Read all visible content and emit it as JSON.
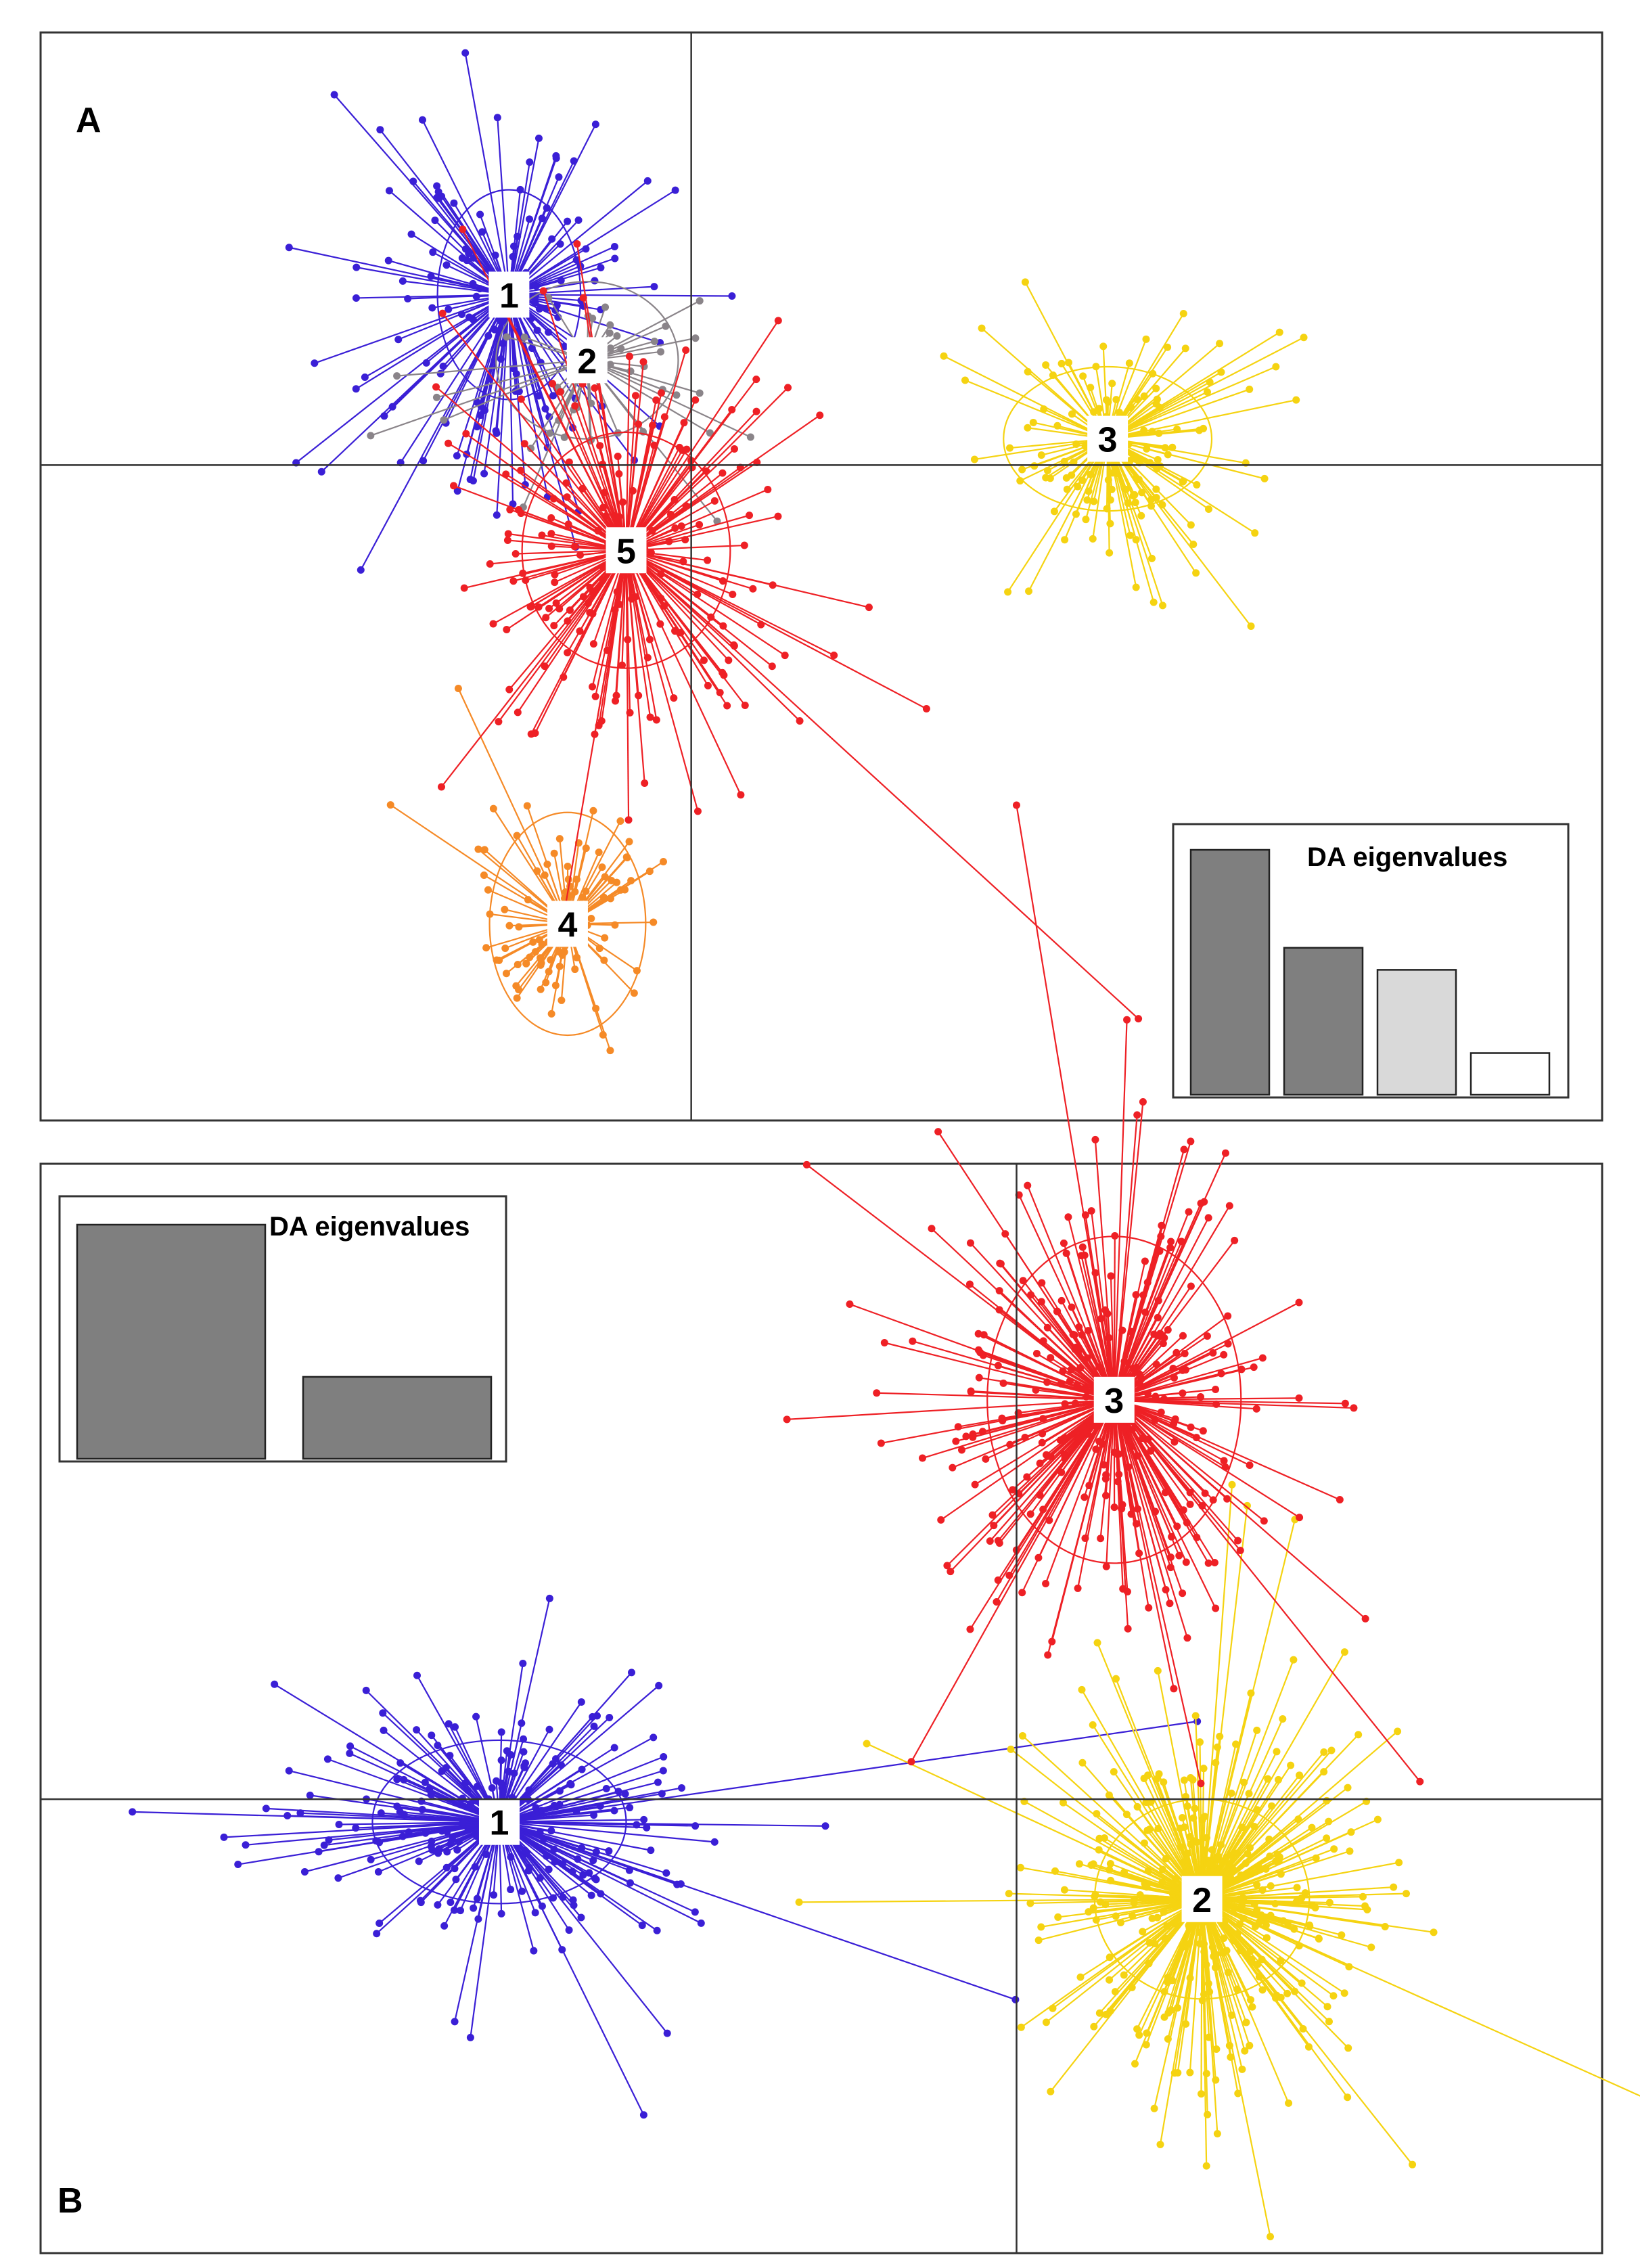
{
  "chart_data": [
    {
      "type": "scatter",
      "panel_label": "A",
      "xlim": [
        -5,
        7
      ],
      "ylim": [
        -5,
        3.3
      ],
      "legend": "none",
      "grid": false,
      "clusters": [
        {
          "id": "1",
          "label": "1",
          "color": "#3a1fd6",
          "centroid": [
            -1.4,
            1.3
          ],
          "spread": [
            0.55,
            0.75
          ],
          "ellipse": [
            0.55,
            0.8
          ],
          "n": 150
        },
        {
          "id": "2",
          "label": "2",
          "color": "#8a8489",
          "centroid": [
            -0.8,
            0.8
          ],
          "spread": [
            0.55,
            0.55
          ],
          "ellipse": [
            0.7,
            0.6
          ],
          "n": 45
        },
        {
          "id": "3",
          "label": "3",
          "color": "#f5d311",
          "centroid": [
            3.2,
            0.2
          ],
          "spread": [
            0.5,
            0.45
          ],
          "ellipse": [
            0.8,
            0.55
          ],
          "n": 140
        },
        {
          "id": "4",
          "label": "4",
          "color": "#f58a27",
          "centroid": [
            -0.95,
            -3.5
          ],
          "spread": [
            0.35,
            0.45
          ],
          "ellipse": [
            0.6,
            0.85
          ],
          "n": 100
        },
        {
          "id": "5",
          "label": "5",
          "color": "#ee2025",
          "centroid": [
            -0.5,
            -0.65
          ],
          "spread": [
            0.7,
            0.85
          ],
          "ellipse": [
            0.8,
            0.9
          ],
          "n": 200
        }
      ],
      "eigenvalues": {
        "title": "DA eigenvalues",
        "values": [
          100,
          60,
          51,
          17
        ],
        "colors": [
          "#7f7f7f",
          "#7f7f7f",
          "#d9d9d9",
          "#ffffff"
        ]
      }
    },
    {
      "type": "scatter",
      "panel_label": "B",
      "xlim": [
        -10,
        6
      ],
      "ylim": [
        -5,
        7
      ],
      "legend": "none",
      "grid": false,
      "clusters": [
        {
          "id": "1",
          "label": "1",
          "color": "#3a1fd6",
          "centroid": [
            -5.3,
            -0.25
          ],
          "spread": [
            1.0,
            0.7
          ],
          "ellipse": [
            1.3,
            0.9
          ],
          "n": 220
        },
        {
          "id": "2",
          "label": "2",
          "color": "#f5d311",
          "centroid": [
            1.9,
            -1.1
          ],
          "spread": [
            0.8,
            0.9
          ],
          "ellipse": [
            1.1,
            1.1
          ],
          "n": 350
        },
        {
          "id": "3",
          "label": "3",
          "color": "#ee2025",
          "centroid": [
            1.0,
            4.4
          ],
          "spread": [
            0.9,
            1.2
          ],
          "ellipse": [
            1.3,
            1.8
          ],
          "n": 300
        }
      ],
      "eigenvalues": {
        "title": "DA eigenvalues",
        "values": [
          100,
          35
        ],
        "colors": [
          "#7f7f7f",
          "#7f7f7f"
        ]
      }
    }
  ]
}
